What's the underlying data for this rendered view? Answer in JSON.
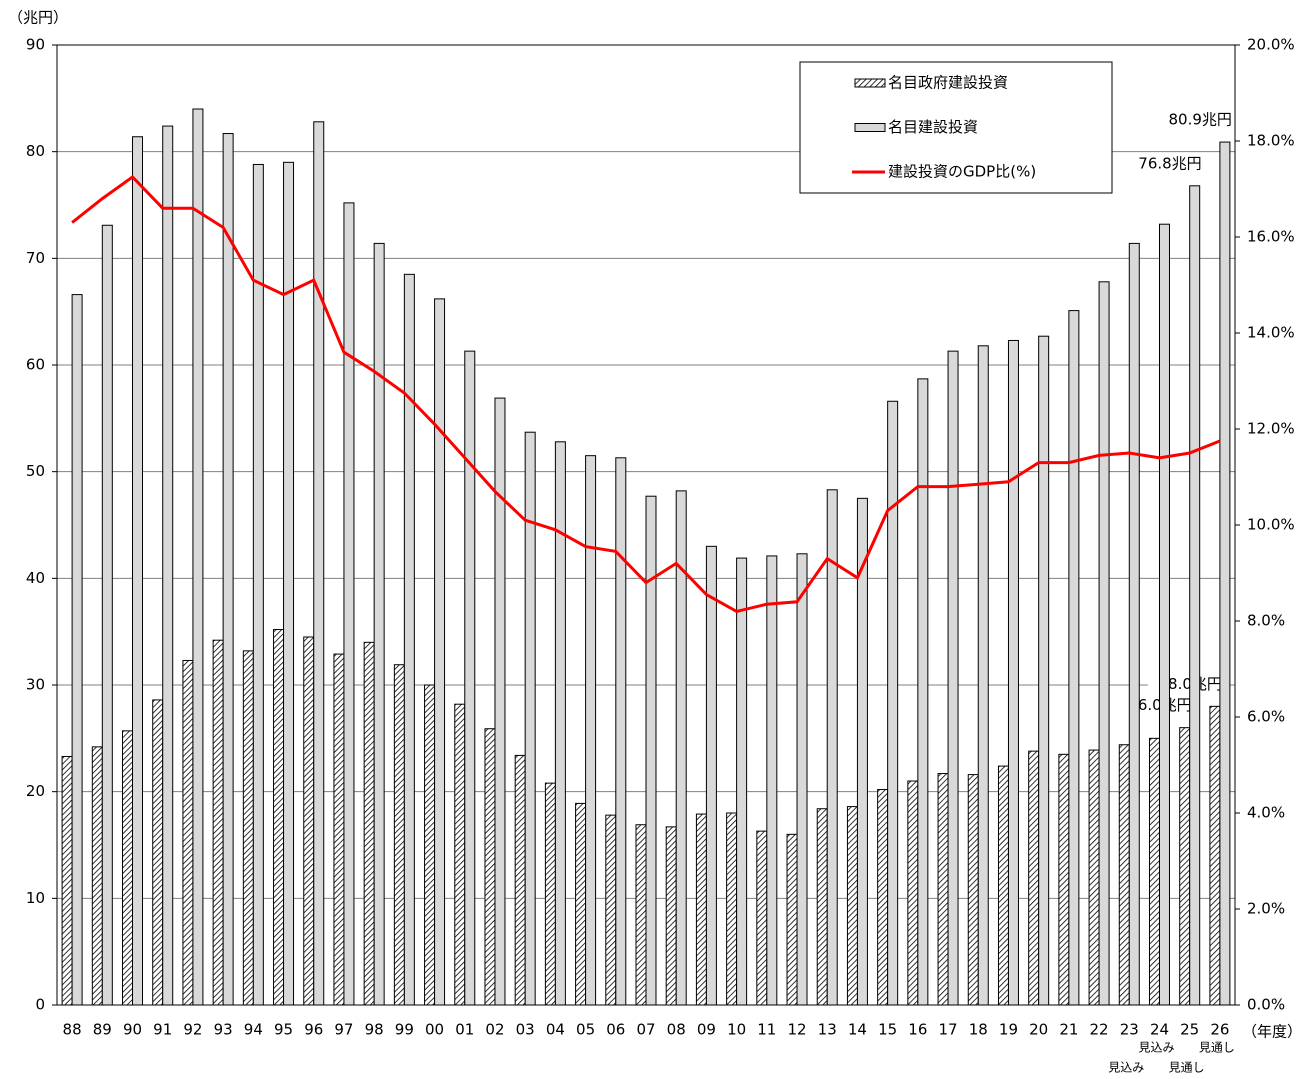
{
  "chart_data": {
    "type": "bar",
    "y_axis_label": "（兆円）",
    "x_axis_label": "（年度）",
    "categories": [
      "88",
      "89",
      "90",
      "91",
      "92",
      "93",
      "94",
      "95",
      "96",
      "97",
      "98",
      "99",
      "00",
      "01",
      "02",
      "03",
      "04",
      "05",
      "06",
      "07",
      "08",
      "09",
      "10",
      "11",
      "12",
      "13",
      "14",
      "15",
      "16",
      "17",
      "18",
      "19",
      "20",
      "21",
      "22",
      "23",
      "24",
      "25",
      "26"
    ],
    "category_notes": [
      null,
      null,
      null,
      null,
      null,
      null,
      null,
      null,
      null,
      null,
      null,
      null,
      null,
      null,
      null,
      null,
      null,
      null,
      null,
      null,
      null,
      null,
      null,
      null,
      null,
      null,
      null,
      null,
      null,
      null,
      null,
      null,
      null,
      null,
      null,
      "見込み",
      "見込み",
      "見通し",
      "見通し"
    ],
    "series": [
      {
        "name": "名目政府建設投資",
        "type": "bar",
        "color": "#000000",
        "hatch": true,
        "values": [
          23.3,
          24.2,
          25.7,
          28.6,
          32.3,
          34.2,
          33.2,
          35.2,
          34.5,
          32.9,
          34.0,
          31.9,
          30.0,
          28.2,
          25.9,
          23.4,
          20.8,
          18.9,
          17.8,
          16.9,
          16.7,
          17.9,
          18.0,
          16.3,
          16.0,
          18.4,
          18.6,
          20.2,
          21.0,
          21.7,
          21.6,
          22.4,
          23.8,
          23.5,
          23.9,
          24.4,
          25.0,
          26.0,
          28.0
        ],
        "value_labels": [
          null,
          null,
          null,
          null,
          null,
          null,
          null,
          null,
          null,
          null,
          null,
          null,
          null,
          null,
          null,
          null,
          null,
          null,
          null,
          null,
          null,
          null,
          null,
          null,
          null,
          null,
          null,
          null,
          null,
          null,
          null,
          null,
          null,
          null,
          null,
          null,
          null,
          "26.0兆円",
          "28.0兆円"
        ]
      },
      {
        "name": "名目建設投資",
        "type": "bar",
        "color": "#d9d9d9",
        "values": [
          66.6,
          73.1,
          81.4,
          82.4,
          84.0,
          81.7,
          78.8,
          79.0,
          82.8,
          75.2,
          71.4,
          68.5,
          66.2,
          61.3,
          56.9,
          53.7,
          52.8,
          51.5,
          51.3,
          47.7,
          48.2,
          43.0,
          41.9,
          42.1,
          42.3,
          48.3,
          47.5,
          56.6,
          58.7,
          61.3,
          61.8,
          62.3,
          62.7,
          65.1,
          67.8,
          71.4,
          73.2,
          76.8,
          80.9
        ],
        "value_labels": [
          null,
          null,
          null,
          null,
          null,
          null,
          null,
          null,
          null,
          null,
          null,
          null,
          null,
          null,
          null,
          null,
          null,
          null,
          null,
          null,
          null,
          null,
          null,
          null,
          null,
          null,
          null,
          null,
          null,
          null,
          null,
          null,
          null,
          null,
          null,
          null,
          null,
          "76.8兆円",
          "80.9兆円"
        ]
      },
      {
        "name": "建設投資のGDP比(%)",
        "type": "line",
        "color": "#ff0000",
        "axis": "y2",
        "values": [
          16.3,
          16.8,
          17.25,
          16.6,
          16.6,
          16.2,
          15.1,
          14.8,
          15.1,
          13.6,
          13.2,
          12.75,
          12.1,
          11.4,
          10.7,
          10.1,
          9.9,
          9.55,
          9.45,
          8.8,
          9.2,
          8.55,
          8.2,
          8.35,
          8.4,
          9.3,
          8.9,
          10.3,
          10.8,
          10.8,
          10.85,
          10.9,
          11.3,
          11.3,
          11.45,
          11.5,
          11.4,
          11.5,
          11.75
        ]
      }
    ],
    "ylim": [
      0,
      90
    ],
    "yticks": [
      0,
      10,
      20,
      30,
      40,
      50,
      60,
      70,
      80,
      90
    ],
    "y2lim": [
      0,
      20
    ],
    "y2ticks": [
      {
        "value": 0,
        "label": "0.0%"
      },
      {
        "value": 2,
        "label": "2.0%"
      },
      {
        "value": 4,
        "label": "4.0%"
      },
      {
        "value": 6,
        "label": "6.0%"
      },
      {
        "value": 8,
        "label": "8.0%"
      },
      {
        "value": 10,
        "label": "10.0%"
      },
      {
        "value": 12,
        "label": "12.0%"
      },
      {
        "value": 14,
        "label": "14.0%"
      },
      {
        "value": 16,
        "label": "16.0%"
      },
      {
        "value": 18,
        "label": "18.0%"
      },
      {
        "value": 20,
        "label": "20.0%"
      }
    ],
    "grid": true,
    "legend": "top-right"
  }
}
